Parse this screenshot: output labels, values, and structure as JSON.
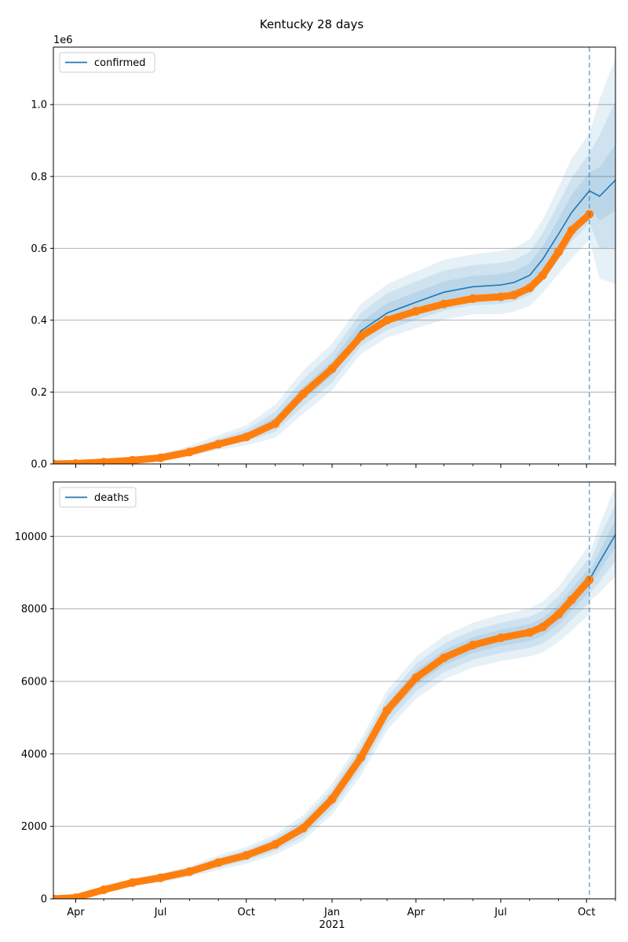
{
  "title": "Kentucky 28 days",
  "colors": {
    "model": "#1f77b4",
    "observed": "#ff7f0e",
    "grid": "#b0b0b0",
    "band": "#1f77b4",
    "cutoff": "#1f77b4"
  },
  "chart_data": [
    {
      "type": "line",
      "panel": "top",
      "legend": {
        "label": "confirmed",
        "placement": "upper-left"
      },
      "y_offset_label": "1e6",
      "grid": "y",
      "xlim": [
        "2020-03-08",
        "2021-11-01"
      ],
      "ylim": [
        0,
        1160000
      ],
      "yticks": [
        0,
        200000,
        400000,
        600000,
        800000,
        1000000
      ],
      "ytick_labels": [
        "0.0",
        "0.2",
        "0.4",
        "0.6",
        "0.8",
        "1.0"
      ],
      "cutoff_date": "2021-10-04",
      "model_series": {
        "name": "confirmed",
        "points": [
          [
            "2020-03-08",
            0
          ],
          [
            "2020-04-01",
            2000
          ],
          [
            "2020-05-01",
            6000
          ],
          [
            "2020-06-01",
            10000
          ],
          [
            "2020-07-01",
            18000
          ],
          [
            "2020-08-01",
            35000
          ],
          [
            "2020-09-01",
            58000
          ],
          [
            "2020-10-01",
            78000
          ],
          [
            "2020-11-01",
            115000
          ],
          [
            "2020-12-01",
            195000
          ],
          [
            "2021-01-01",
            265000
          ],
          [
            "2021-02-01",
            370000
          ],
          [
            "2021-03-01",
            420000
          ],
          [
            "2021-04-01",
            450000
          ],
          [
            "2021-05-01",
            478000
          ],
          [
            "2021-06-01",
            493000
          ],
          [
            "2021-07-01",
            498000
          ],
          [
            "2021-07-15",
            505000
          ],
          [
            "2021-08-01",
            525000
          ],
          [
            "2021-08-15",
            570000
          ],
          [
            "2021-09-01",
            640000
          ],
          [
            "2021-09-15",
            700000
          ],
          [
            "2021-10-04",
            760000
          ],
          [
            "2021-10-15",
            745000
          ],
          [
            "2021-11-01",
            790000
          ]
        ],
        "bands": [
          {
            "spread": [
              0,
              3000,
              6000,
              8000,
              10000,
              15000,
              22000,
              30000,
              50000,
              65000,
              70000,
              75000,
              80000,
              85000,
              90000,
              90000,
              95000,
              95000,
              100000,
              110000,
              130000,
              150000,
              160000,
              270000,
              340000
            ]
          },
          {
            "spread": [
              0,
              1500,
              3000,
              4000,
              5000,
              8000,
              12000,
              18000,
              30000,
              40000,
              45000,
              50000,
              55000,
              58000,
              60000,
              60000,
              62000,
              62000,
              65000,
              72000,
              85000,
              95000,
              105000,
              170000,
              220000
            ]
          },
          {
            "spread": [
              0,
              700,
              1500,
              2000,
              2500,
              4000,
              6000,
              9000,
              15000,
              20000,
              22000,
              25000,
              27000,
              28000,
              30000,
              30000,
              31000,
              31000,
              33000,
              36000,
              42000,
              48000,
              52000,
              80000,
              100000
            ]
          }
        ]
      },
      "observed_series": {
        "points": [
          [
            "2020-03-08",
            0
          ],
          [
            "2020-04-01",
            1000
          ],
          [
            "2020-05-01",
            5000
          ],
          [
            "2020-06-01",
            10000
          ],
          [
            "2020-07-01",
            17000
          ],
          [
            "2020-08-01",
            33000
          ],
          [
            "2020-09-01",
            55000
          ],
          [
            "2020-10-01",
            75000
          ],
          [
            "2020-11-01",
            112000
          ],
          [
            "2020-12-01",
            195000
          ],
          [
            "2021-01-01",
            265000
          ],
          [
            "2021-02-01",
            355000
          ],
          [
            "2021-03-01",
            400000
          ],
          [
            "2021-04-01",
            425000
          ],
          [
            "2021-05-01",
            445000
          ],
          [
            "2021-06-01",
            460000
          ],
          [
            "2021-07-01",
            465000
          ],
          [
            "2021-07-15",
            470000
          ],
          [
            "2021-08-01",
            490000
          ],
          [
            "2021-08-15",
            525000
          ],
          [
            "2021-09-01",
            590000
          ],
          [
            "2021-09-15",
            650000
          ],
          [
            "2021-10-04",
            695000
          ]
        ]
      }
    },
    {
      "type": "line",
      "panel": "bottom",
      "legend": {
        "label": "deaths",
        "placement": "upper-left"
      },
      "grid": "y",
      "xlim": [
        "2020-03-08",
        "2021-11-01"
      ],
      "ylim": [
        0,
        11500
      ],
      "yticks": [
        0,
        2000,
        4000,
        6000,
        8000,
        10000
      ],
      "ytick_labels": [
        "0",
        "2000",
        "4000",
        "6000",
        "8000",
        "10000"
      ],
      "xticks": [
        "2020-04-01",
        "2020-07-01",
        "2020-10-01",
        "2021-01-01",
        "2021-04-01",
        "2021-07-01",
        "2021-10-01"
      ],
      "xtick_labels": [
        "Apr",
        "Jul",
        "Oct",
        "Jan",
        "Apr",
        "Jul",
        "Oct"
      ],
      "year_label": "2021",
      "cutoff_date": "2021-10-04",
      "model_series": {
        "name": "deaths",
        "points": [
          [
            "2021-10-04",
            8800
          ],
          [
            "2021-10-15",
            9300
          ],
          [
            "2021-11-01",
            10050
          ]
        ],
        "bands": [
          {
            "spread": [
              700,
              1000,
              1350
            ]
          },
          {
            "spread": [
              450,
              650,
              850
            ]
          },
          {
            "spread": [
              200,
              300,
              400
            ]
          }
        ]
      },
      "observed_series": {
        "points": [
          [
            "2020-03-08",
            0
          ],
          [
            "2020-04-01",
            30
          ],
          [
            "2020-05-01",
            250
          ],
          [
            "2020-06-01",
            450
          ],
          [
            "2020-07-01",
            580
          ],
          [
            "2020-08-01",
            750
          ],
          [
            "2020-09-01",
            1000
          ],
          [
            "2020-10-01",
            1200
          ],
          [
            "2020-11-01",
            1500
          ],
          [
            "2020-12-01",
            1950
          ],
          [
            "2021-01-01",
            2750
          ],
          [
            "2021-02-01",
            3900
          ],
          [
            "2021-03-01",
            5200
          ],
          [
            "2021-04-01",
            6100
          ],
          [
            "2021-05-01",
            6650
          ],
          [
            "2021-06-01",
            7000
          ],
          [
            "2021-07-01",
            7200
          ],
          [
            "2021-08-01",
            7350
          ],
          [
            "2021-08-15",
            7500
          ],
          [
            "2021-09-01",
            7850
          ],
          [
            "2021-09-15",
            8250
          ],
          [
            "2021-10-04",
            8800
          ]
        ],
        "band_spread": [
          0,
          30,
          60,
          90,
          120,
          150,
          200,
          230,
          280,
          350,
          420,
          500,
          550,
          580,
          600,
          620,
          640,
          660,
          700,
          760,
          850,
          950
        ]
      }
    }
  ]
}
